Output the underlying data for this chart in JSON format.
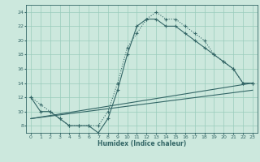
{
  "xlabel": "Humidex (Indice chaleur)",
  "ylabel": "",
  "bg_color": "#cce8dd",
  "grid_color": "#99ccbb",
  "line_color": "#336666",
  "xlim": [
    -0.5,
    23.5
  ],
  "ylim": [
    7,
    25
  ],
  "xticks": [
    0,
    1,
    2,
    3,
    4,
    5,
    6,
    7,
    8,
    9,
    10,
    11,
    12,
    13,
    14,
    15,
    16,
    17,
    18,
    19,
    20,
    21,
    22,
    23
  ],
  "yticks": [
    8,
    10,
    12,
    14,
    16,
    18,
    20,
    22,
    24
  ],
  "curve1_x": [
    0,
    1,
    2,
    3,
    4,
    5,
    6,
    7,
    8,
    9,
    10,
    11,
    12,
    13,
    14,
    15,
    16,
    17,
    18,
    19,
    20,
    21,
    22,
    23
  ],
  "curve1_y": [
    12,
    11,
    10,
    9,
    8,
    8,
    8,
    8,
    10,
    14,
    19,
    21,
    23,
    24,
    23,
    23,
    22,
    21,
    20,
    18,
    17,
    16,
    14,
    14
  ],
  "curve2_x": [
    0,
    1,
    2,
    3,
    4,
    5,
    6,
    7,
    8,
    9,
    10,
    11,
    12,
    13,
    14,
    15,
    16,
    17,
    18,
    19,
    20,
    21,
    22,
    23
  ],
  "curve2_y": [
    12,
    10,
    10,
    9,
    8,
    8,
    8,
    7,
    9,
    13,
    18,
    22,
    23,
    23,
    22,
    22,
    21,
    20,
    19,
    18,
    17,
    16,
    14,
    14
  ],
  "curve3_x": [
    0,
    23
  ],
  "curve3_y": [
    9,
    14
  ],
  "curve4_x": [
    0,
    23
  ],
  "curve4_y": [
    9,
    13
  ]
}
